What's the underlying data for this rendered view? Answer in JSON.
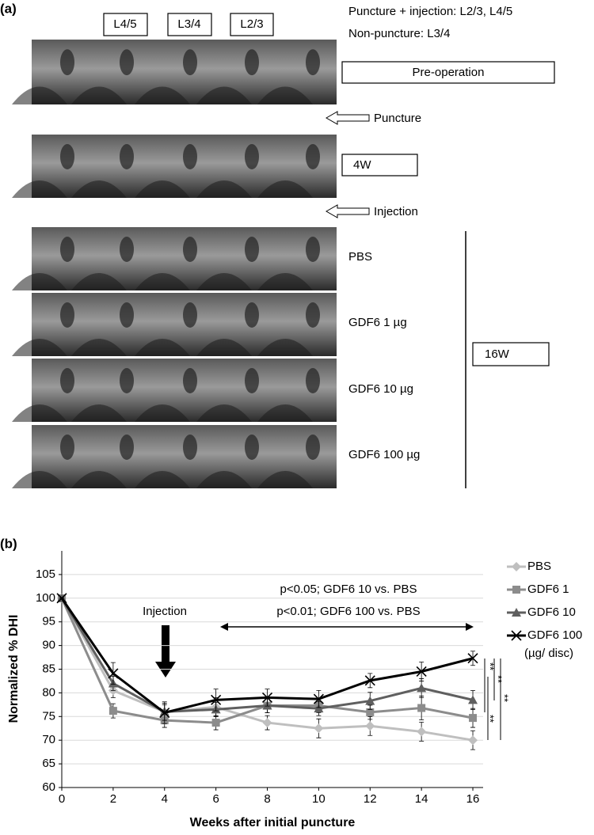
{
  "panel_a": {
    "label": "(a)",
    "levels": [
      "L4/5",
      "L3/4",
      "L2/3"
    ],
    "notes": [
      "Puncture + injection: L2/3, L4/5",
      "Non-puncture: L3/4"
    ],
    "stages": {
      "pre": "Pre-operation",
      "puncture": "Puncture",
      "w4": "4W",
      "injection": "Injection",
      "w16": "16W"
    },
    "groups": [
      "PBS",
      "GDF6 1 µg",
      "GDF6 10 µg",
      "GDF6 100 µg"
    ]
  },
  "chart_data": {
    "type": "line",
    "panel_label": "(b)",
    "x_label": "Weeks after initial puncture",
    "y_label": "Normalized % DHI",
    "x": [
      0,
      2,
      4,
      6,
      8,
      10,
      12,
      14,
      16
    ],
    "xlim": [
      0,
      16.4
    ],
    "xticks": [
      0,
      2,
      4,
      6,
      8,
      10,
      12,
      14,
      16
    ],
    "ylim": [
      60,
      110
    ],
    "yticks": [
      60,
      65,
      70,
      75,
      80,
      85,
      90,
      95,
      100,
      105
    ],
    "grid": true,
    "series": [
      {
        "name": "PBS",
        "color": "#bfbfbf",
        "marker": "diamond",
        "values": [
          100,
          80.5,
          76,
          77,
          73.7,
          72.5,
          73,
          71.8,
          70
        ],
        "errors": [
          0,
          1.5,
          1.5,
          2,
          1.5,
          2,
          2,
          2,
          2
        ]
      },
      {
        "name": "GDF6 1",
        "color": "#8c8c8c",
        "marker": "square",
        "values": [
          100,
          76.2,
          74.2,
          73.7,
          77.3,
          77.3,
          75.9,
          76.8,
          74.7
        ],
        "errors": [
          0,
          1.5,
          1.5,
          1.5,
          1.5,
          1.5,
          1.5,
          2.5,
          2
        ]
      },
      {
        "name": "GDF6 10",
        "color": "#5f5f5f",
        "marker": "triangle",
        "values": [
          100,
          82,
          76,
          76.5,
          77.3,
          76.7,
          78.3,
          81,
          78.5
        ],
        "errors": [
          0,
          1.5,
          1.8,
          1.5,
          1.5,
          1.5,
          1.8,
          2,
          2
        ]
      },
      {
        "name": "GDF6 100",
        "color": "#000000",
        "marker": "x",
        "values": [
          100,
          84.1,
          75.8,
          78.5,
          79,
          78.7,
          82.6,
          84.5,
          87.3
        ],
        "errors": [
          0,
          2.3,
          2.3,
          2.3,
          1.8,
          1.8,
          1.5,
          2,
          1.5
        ]
      }
    ],
    "legend_note": "(µg/ disc)",
    "annotations": {
      "injection": "Injection",
      "sig1": "p<0.05; GDF6 10 vs. PBS",
      "sig2": "p<0.01; GDF6 100 vs. PBS",
      "stars": [
        "**",
        "**",
        "**",
        "**"
      ]
    }
  }
}
